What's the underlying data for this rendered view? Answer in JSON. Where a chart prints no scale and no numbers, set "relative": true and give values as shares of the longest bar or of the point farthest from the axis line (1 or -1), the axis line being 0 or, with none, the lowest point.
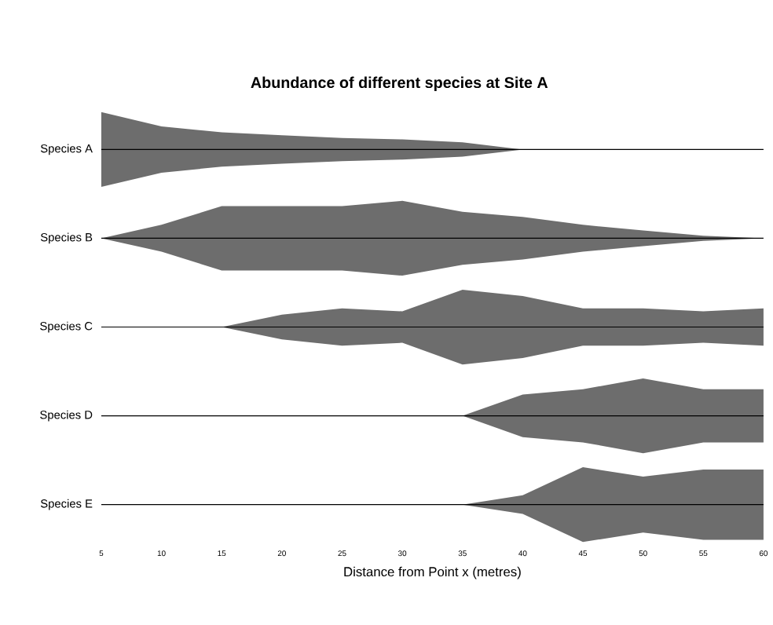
{
  "chart_data": [
    {
      "type": "area",
      "title": "Abundance of different species at Site A",
      "ylabel": "Species A",
      "x": [
        5,
        10,
        15,
        20,
        25,
        30,
        35,
        40,
        45,
        50,
        55,
        60
      ],
      "xlim": [
        5,
        60
      ],
      "relative": true,
      "tick_labels": false,
      "series": [
        {
          "color": "#6d6d6d",
          "values": [
            1,
            0.62,
            0.46,
            0.38,
            0.31,
            0.27,
            0.19,
            0,
            0,
            0,
            0,
            0
          ]
        }
      ]
    },
    {
      "type": "area",
      "ylabel": "Species B",
      "x": [
        5,
        10,
        15,
        20,
        25,
        30,
        35,
        40,
        45,
        50,
        55,
        60
      ],
      "xlim": [
        5,
        60
      ],
      "relative": true,
      "tick_labels": false,
      "series": [
        {
          "color": "#6d6d6d",
          "values": [
            0,
            0.36,
            0.86,
            0.86,
            0.86,
            1,
            0.71,
            0.57,
            0.36,
            0.21,
            0.07,
            0
          ]
        }
      ]
    },
    {
      "type": "area",
      "ylabel": "Species C",
      "x": [
        5,
        10,
        15,
        20,
        25,
        30,
        35,
        40,
        45,
        50,
        55,
        60
      ],
      "xlim": [
        5,
        60
      ],
      "relative": true,
      "tick_labels": false,
      "series": [
        {
          "color": "#6d6d6d",
          "values": [
            0,
            0,
            0,
            0.33,
            0.5,
            0.42,
            1,
            0.83,
            0.5,
            0.5,
            0.42,
            0.5
          ]
        }
      ]
    },
    {
      "type": "area",
      "ylabel": "Species D",
      "x": [
        5,
        10,
        15,
        20,
        25,
        30,
        35,
        40,
        45,
        50,
        55,
        60
      ],
      "xlim": [
        5,
        60
      ],
      "relative": true,
      "tick_labels": false,
      "series": [
        {
          "color": "#6d6d6d",
          "values": [
            0,
            0,
            0,
            0,
            0,
            0,
            0,
            0.57,
            0.71,
            1,
            0.71,
            0.71
          ]
        }
      ]
    },
    {
      "type": "area",
      "ylabel": "Species E",
      "xlabel": "Distance from Point x (metres)",
      "x": [
        5,
        10,
        15,
        20,
        25,
        30,
        35,
        40,
        45,
        50,
        55,
        60
      ],
      "xlim": [
        5,
        60
      ],
      "xticks": [
        5,
        10,
        15,
        20,
        25,
        30,
        35,
        40,
        45,
        50,
        55,
        60
      ],
      "relative": true,
      "tick_labels": "x",
      "series": [
        {
          "color": "#6d6d6d",
          "values": [
            0,
            0,
            0,
            0,
            0,
            0,
            0,
            0.25,
            1,
            0.75,
            0.94,
            0.94
          ]
        }
      ]
    }
  ]
}
